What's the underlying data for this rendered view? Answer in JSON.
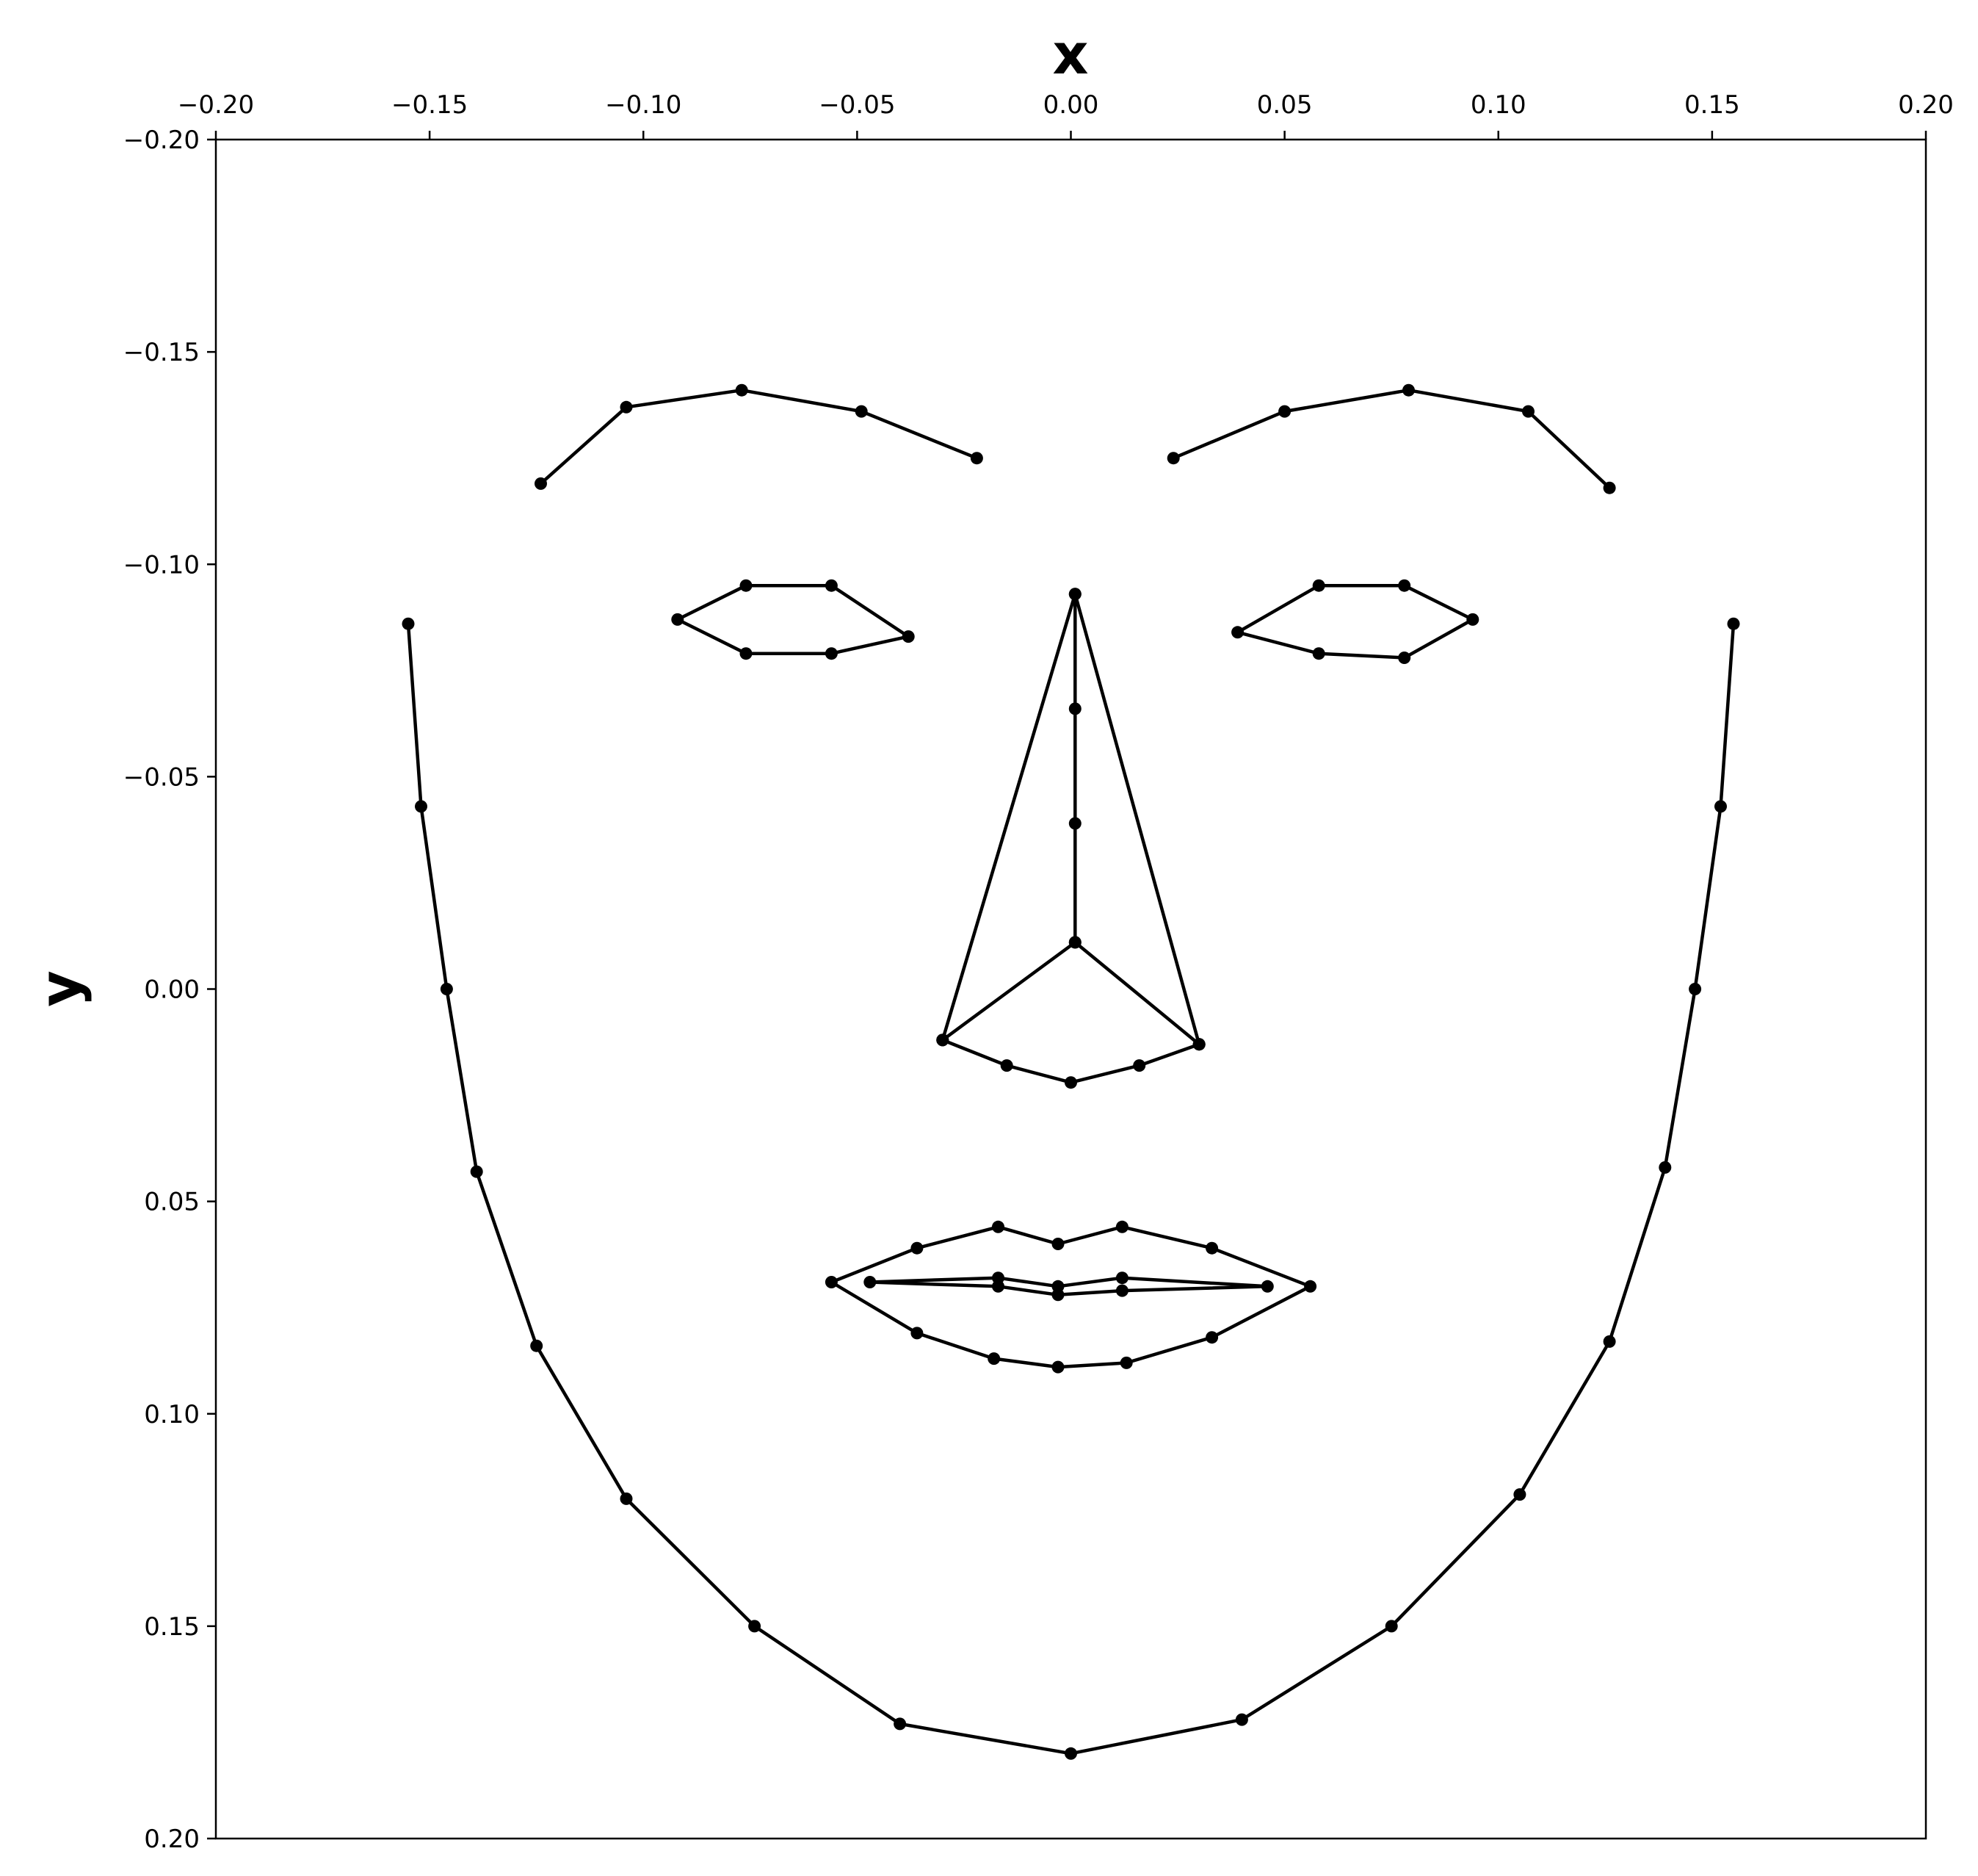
{
  "chart_data": {
    "type": "scatter",
    "title": "",
    "xlabel": "x",
    "ylabel": "y",
    "xlim": [
      -0.2,
      0.2
    ],
    "ylim": [
      -0.2,
      0.2
    ],
    "y_inverted": true,
    "x_axis_position": "top",
    "grid": false,
    "legend": "none",
    "line_color": "#000000",
    "xticks": [
      "−0.20",
      "−0.15",
      "−0.10",
      "−0.05",
      "0.00",
      "0.05",
      "0.10",
      "0.15",
      "0.20"
    ],
    "yticks": [
      "−0.20",
      "−0.15",
      "−0.10",
      "−0.05",
      "0.00",
      "0.05",
      "0.10",
      "0.15",
      "0.20"
    ],
    "xtick_values": [
      -0.2,
      -0.15,
      -0.1,
      -0.05,
      0,
      0.05,
      0.1,
      0.15,
      0.2
    ],
    "ytick_values": [
      -0.2,
      -0.15,
      -0.1,
      -0.05,
      0,
      0.05,
      0.1,
      0.15,
      0.2
    ],
    "series": [
      {
        "closed": false,
        "points": [
          [
            -0.155,
            -0.086
          ],
          [
            -0.152,
            -0.043
          ],
          [
            -0.146,
            0.0
          ],
          [
            -0.139,
            0.043
          ],
          [
            -0.125,
            0.084
          ],
          [
            -0.104,
            0.12
          ],
          [
            -0.074,
            0.15
          ],
          [
            -0.04,
            0.173
          ],
          [
            0.0,
            0.18
          ],
          [
            0.04,
            0.172
          ],
          [
            0.075,
            0.15
          ],
          [
            0.105,
            0.119
          ],
          [
            0.126,
            0.083
          ],
          [
            0.139,
            0.042
          ],
          [
            0.146,
            0.0
          ],
          [
            0.152,
            -0.043
          ],
          [
            0.155,
            -0.086
          ]
        ]
      },
      {
        "closed": false,
        "points": [
          [
            -0.124,
            -0.119
          ],
          [
            -0.104,
            -0.137
          ],
          [
            -0.077,
            -0.141
          ],
          [
            -0.049,
            -0.136
          ],
          [
            -0.022,
            -0.125
          ]
        ]
      },
      {
        "closed": false,
        "points": [
          [
            0.024,
            -0.125
          ],
          [
            0.05,
            -0.136
          ],
          [
            0.079,
            -0.141
          ],
          [
            0.107,
            -0.136
          ],
          [
            0.126,
            -0.118
          ]
        ]
      },
      {
        "closed": false,
        "points": [
          [
            0.001,
            -0.093
          ],
          [
            0.001,
            -0.066
          ],
          [
            0.001,
            -0.039
          ],
          [
            0.001,
            -0.011
          ]
        ]
      },
      {
        "closed": false,
        "points": [
          [
            -0.03,
            0.012
          ],
          [
            -0.015,
            0.018
          ],
          [
            0.0,
            0.022
          ],
          [
            0.016,
            0.018
          ],
          [
            0.03,
            0.013
          ]
        ]
      },
      {
        "closed": false,
        "points": [
          [
            -0.03,
            0.012
          ],
          [
            0.001,
            -0.093
          ],
          [
            0.03,
            0.013
          ]
        ]
      },
      {
        "closed": false,
        "points": [
          [
            -0.03,
            0.012
          ],
          [
            0.001,
            -0.011
          ],
          [
            0.03,
            0.013
          ]
        ]
      },
      {
        "closed": true,
        "points": [
          [
            -0.092,
            -0.087
          ],
          [
            -0.076,
            -0.095
          ],
          [
            -0.056,
            -0.095
          ],
          [
            -0.038,
            -0.083
          ],
          [
            -0.056,
            -0.079
          ],
          [
            -0.076,
            -0.079
          ]
        ]
      },
      {
        "closed": true,
        "points": [
          [
            0.039,
            -0.084
          ],
          [
            0.058,
            -0.095
          ],
          [
            0.078,
            -0.095
          ],
          [
            0.094,
            -0.087
          ],
          [
            0.078,
            -0.078
          ],
          [
            0.058,
            -0.079
          ]
        ]
      },
      {
        "closed": true,
        "points": [
          [
            -0.056,
            0.069
          ],
          [
            -0.036,
            0.061
          ],
          [
            -0.017,
            0.056
          ],
          [
            -0.003,
            0.06
          ],
          [
            0.012,
            0.056
          ],
          [
            0.033,
            0.061
          ],
          [
            0.056,
            0.07
          ],
          [
            0.033,
            0.082
          ],
          [
            0.013,
            0.088
          ],
          [
            -0.003,
            0.089
          ],
          [
            -0.018,
            0.087
          ],
          [
            -0.036,
            0.081
          ]
        ]
      },
      {
        "closed": true,
        "points": [
          [
            -0.047,
            0.069
          ],
          [
            -0.017,
            0.068
          ],
          [
            -0.003,
            0.07
          ],
          [
            0.012,
            0.068
          ],
          [
            0.046,
            0.07
          ],
          [
            0.012,
            0.071
          ],
          [
            -0.003,
            0.072
          ],
          [
            -0.017,
            0.07
          ]
        ]
      }
    ]
  }
}
